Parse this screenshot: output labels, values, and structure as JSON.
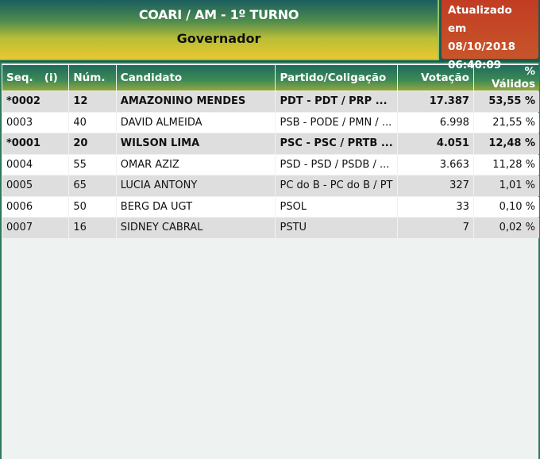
{
  "header": {
    "title": "COARI / AM - 1º TURNO",
    "subtitle": "Governador"
  },
  "update": {
    "label": "Atualizado em",
    "date": "08/10/2018",
    "time": "06:40:09"
  },
  "table": {
    "columns": [
      "Seq.   (i)",
      "Núm.",
      "Candidato",
      "Partido/Coligação",
      "Votação",
      "% Válidos"
    ],
    "rows": [
      {
        "seq": "*0002",
        "num": "12",
        "name": "AMAZONINO MENDES",
        "party": "PDT - PDT / PRP ...",
        "votes": "17.387",
        "pct": "53,55 %",
        "elected": true
      },
      {
        "seq": "0003",
        "num": "40",
        "name": "DAVID ALMEIDA",
        "party": "PSB - PODE / PMN / ...",
        "votes": "6.998",
        "pct": "21,55 %",
        "elected": false
      },
      {
        "seq": "*0001",
        "num": "20",
        "name": "WILSON LIMA",
        "party": "PSC - PSC / PRTB ...",
        "votes": "4.051",
        "pct": "12,48 %",
        "elected": true
      },
      {
        "seq": "0004",
        "num": "55",
        "name": "OMAR AZIZ",
        "party": "PSD - PSD / PSDB / ...",
        "votes": "3.663",
        "pct": "11,28 %",
        "elected": false
      },
      {
        "seq": "0005",
        "num": "65",
        "name": "LUCIA ANTONY",
        "party": "PC do B - PC do B / PT",
        "votes": "327",
        "pct": "1,01 %",
        "elected": false
      },
      {
        "seq": "0006",
        "num": "50",
        "name": "BERG DA UGT",
        "party": "PSOL",
        "votes": "33",
        "pct": "0,10 %",
        "elected": false
      },
      {
        "seq": "0007",
        "num": "16",
        "name": "SIDNEY CABRAL",
        "party": "PSTU",
        "votes": "7",
        "pct": "0,02 %",
        "elected": false
      }
    ]
  }
}
